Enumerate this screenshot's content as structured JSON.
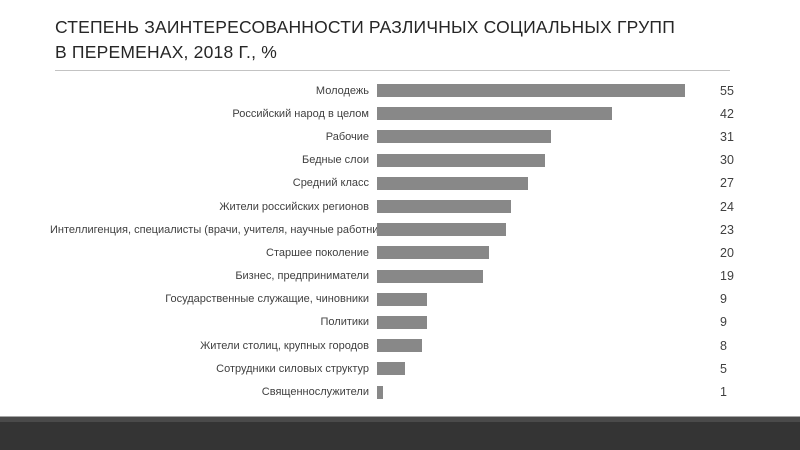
{
  "title": {
    "line1": "СТЕПЕНЬ ЗАИНТЕРЕСОВАННОСТИ РАЗЛИЧНЫХ СОЦИАЛЬНЫХ ГРУПП",
    "line2": "В ПЕРЕМЕНАХ, 2018 Г., %"
  },
  "chart_data": {
    "type": "bar",
    "orientation": "horizontal",
    "title": "СТЕПЕНЬ ЗАИНТЕРЕСОВАННОСТИ РАЗЛИЧНЫХ СОЦИАЛЬНЫХ ГРУПП В ПЕРЕМЕНАХ, 2018 Г., %",
    "categories": [
      "Молодежь",
      "Российский народ в целом",
      "Рабочие",
      "Бедные слои",
      "Средний класс",
      "Жители российских регионов",
      "Интеллигенция, специалисты (врачи, учителя, научные работники)",
      "Старшее поколение",
      "Бизнес, предприниматели",
      "Государственные служащие, чиновники",
      "Политики",
      "Жители столиц, крупных городов",
      "Сотрудники силовых структур",
      "Священнослужители"
    ],
    "values": [
      55,
      42,
      31,
      30,
      27,
      24,
      23,
      20,
      19,
      9,
      9,
      8,
      5,
      1
    ],
    "xlabel": "",
    "ylabel": "",
    "xlim": [
      0,
      60
    ],
    "grid": false,
    "legend": false,
    "data_labels": true,
    "bar_color": "#888888",
    "text_color": "#404040"
  },
  "colors": {
    "title_text": "#262626",
    "divider": "#c3c3c3",
    "bar_fill": "#888888",
    "label_text": "#404040",
    "footer_band_dark": "#343434",
    "footer_band_mid": "#4a4a4a",
    "footer_band_light_line": "#a6a6a6",
    "background": "#ffffff"
  }
}
